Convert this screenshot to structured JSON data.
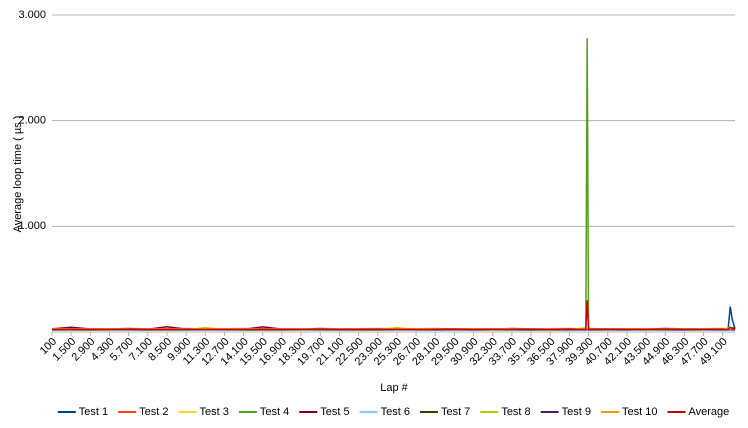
{
  "chart_data": {
    "type": "line",
    "y_label": "Average loop time ( µs )",
    "x_label": "Lap #",
    "x": [
      100,
      1500,
      2900,
      4300,
      5700,
      7100,
      8500,
      9900,
      11300,
      12700,
      14100,
      15500,
      16900,
      18300,
      19700,
      21100,
      22500,
      23900,
      25300,
      26700,
      28100,
      29500,
      30900,
      32300,
      33700,
      35100,
      36500,
      37900,
      39100,
      39200,
      39300,
      40700,
      42100,
      43500,
      44900,
      46300,
      47700,
      49100,
      49500,
      49650,
      49800,
      50000
    ],
    "xlim": [
      100,
      50000
    ],
    "xticks": [
      {
        "value": 100,
        "label": "100"
      },
      {
        "value": 1500,
        "label": "1.500"
      },
      {
        "value": 2900,
        "label": "2.900"
      },
      {
        "value": 4300,
        "label": "4.300"
      },
      {
        "value": 5700,
        "label": "5.700"
      },
      {
        "value": 7100,
        "label": "7.100"
      },
      {
        "value": 8500,
        "label": "8.500"
      },
      {
        "value": 9900,
        "label": "9.900"
      },
      {
        "value": 11300,
        "label": "11.300"
      },
      {
        "value": 12700,
        "label": "12.700"
      },
      {
        "value": 14100,
        "label": "14.100"
      },
      {
        "value": 15500,
        "label": "15.500"
      },
      {
        "value": 16900,
        "label": "16.900"
      },
      {
        "value": 18300,
        "label": "18.300"
      },
      {
        "value": 19700,
        "label": "19.700"
      },
      {
        "value": 21100,
        "label": "21.100"
      },
      {
        "value": 22500,
        "label": "22.500"
      },
      {
        "value": 23900,
        "label": "23.900"
      },
      {
        "value": 25300,
        "label": "25.300"
      },
      {
        "value": 26700,
        "label": "26.700"
      },
      {
        "value": 28100,
        "label": "28.100"
      },
      {
        "value": 29500,
        "label": "29.500"
      },
      {
        "value": 30900,
        "label": "30.900"
      },
      {
        "value": 32300,
        "label": "32.300"
      },
      {
        "value": 33700,
        "label": "33.700"
      },
      {
        "value": 35100,
        "label": "35.100"
      },
      {
        "value": 36500,
        "label": "36.500"
      },
      {
        "value": 37900,
        "label": "37.900"
      },
      {
        "value": 39300,
        "label": "39.300"
      },
      {
        "value": 40700,
        "label": "40.700"
      },
      {
        "value": 42100,
        "label": "42.100"
      },
      {
        "value": 43500,
        "label": "43.500"
      },
      {
        "value": 44900,
        "label": "44.900"
      },
      {
        "value": 46300,
        "label": "46.300"
      },
      {
        "value": 47700,
        "label": "47.700"
      },
      {
        "value": 49100,
        "label": "49.100"
      }
    ],
    "ylim": [
      0,
      3000
    ],
    "yticks": [
      {
        "value": 1000,
        "label": "1.000"
      },
      {
        "value": 2000,
        "label": "2.000"
      },
      {
        "value": 3000,
        "label": "3.000"
      }
    ],
    "grid": true,
    "legend": "bottom",
    "series": [
      {
        "name": "Test 1",
        "color": "#004586",
        "values": [
          25,
          22,
          24,
          23,
          26,
          22,
          25,
          24,
          23,
          22,
          25,
          24,
          23,
          26,
          22,
          24,
          25,
          23,
          22,
          24,
          26,
          23,
          22,
          25,
          24,
          23,
          22,
          24,
          23,
          25,
          24,
          22,
          23,
          25,
          24,
          22,
          26,
          25,
          30,
          240,
          120,
          30
        ]
      },
      {
        "name": "Test 2",
        "color": "#ff420e",
        "values": [
          20,
          21,
          19,
          20,
          22,
          20,
          19,
          21,
          20,
          20,
          21,
          19,
          20,
          22,
          20,
          21,
          19,
          20,
          21,
          20,
          19,
          22,
          20,
          21,
          20,
          19,
          20,
          21,
          20,
          20,
          19,
          21,
          20,
          22,
          20,
          19,
          21,
          20,
          20,
          22,
          21,
          20
        ]
      },
      {
        "name": "Test 3",
        "color": "#ffd320",
        "values": [
          28,
          26,
          27,
          25,
          28,
          26,
          27,
          29,
          26,
          25,
          27,
          28,
          26,
          27,
          25,
          29,
          27,
          26,
          28,
          27,
          25,
          26,
          28,
          27,
          26,
          29,
          27,
          28,
          26,
          27,
          28,
          26,
          27,
          25,
          28,
          27,
          26,
          27,
          28,
          26,
          27,
          28
        ]
      },
      {
        "name": "Test 4",
        "color": "#579d1c",
        "values": [
          22,
          21,
          23,
          22,
          21,
          20,
          22,
          23,
          21,
          22,
          20,
          21,
          22,
          23,
          21,
          22,
          20,
          21,
          23,
          22,
          21,
          22,
          20,
          21,
          22,
          23,
          21,
          22,
          21,
          2780,
          22,
          21,
          22,
          20,
          21,
          22,
          23,
          21,
          22,
          21,
          22,
          21
        ]
      },
      {
        "name": "Test 5",
        "color": "#7e0021",
        "values": [
          30,
          45,
          28,
          27,
          29,
          26,
          50,
          27,
          28,
          29,
          26,
          48,
          27,
          28,
          26,
          29,
          27,
          28,
          26,
          27,
          28,
          27,
          26,
          29,
          27,
          28,
          26,
          27,
          28,
          27,
          26,
          28,
          27,
          29,
          26,
          28,
          27,
          26,
          30,
          28,
          27,
          26
        ]
      },
      {
        "name": "Test 6",
        "color": "#83caff",
        "values": [
          18,
          19,
          18,
          20,
          19,
          18,
          19,
          18,
          20,
          19,
          18,
          19,
          18,
          20,
          19,
          18,
          19,
          18,
          20,
          19,
          18,
          19,
          18,
          20,
          19,
          18,
          19,
          18,
          20,
          19,
          18,
          19,
          18,
          20,
          19,
          18,
          19,
          18,
          20,
          19,
          18,
          19
        ]
      },
      {
        "name": "Test 7",
        "color": "#314004",
        "values": [
          32,
          30,
          31,
          29,
          33,
          30,
          31,
          32,
          30,
          31,
          32,
          30,
          31,
          29,
          33,
          30,
          31,
          32,
          30,
          31,
          32,
          30,
          31,
          29,
          33,
          30,
          31,
          32,
          30,
          31,
          32,
          30,
          31,
          29,
          33,
          30,
          31,
          32,
          30,
          31,
          38,
          35
        ]
      },
      {
        "name": "Test 8",
        "color": "#aecf00",
        "values": [
          24,
          23,
          25,
          24,
          23,
          26,
          24,
          23,
          40,
          24,
          24,
          23,
          25,
          24,
          23,
          26,
          24,
          23,
          40,
          24,
          24,
          23,
          25,
          24,
          23,
          26,
          24,
          23,
          40,
          24,
          24,
          23,
          25,
          24,
          23,
          26,
          24,
          23,
          40,
          24,
          24,
          23
        ]
      },
      {
        "name": "Test 9",
        "color": "#4b1f6f",
        "values": [
          21,
          22,
          21,
          23,
          22,
          21,
          22,
          21,
          23,
          22,
          21,
          22,
          21,
          23,
          22,
          21,
          22,
          21,
          23,
          22,
          21,
          22,
          21,
          23,
          22,
          21,
          22,
          21,
          23,
          22,
          21,
          22,
          21,
          23,
          22,
          21,
          22,
          21,
          23,
          22,
          22,
          21
        ]
      },
      {
        "name": "Test 10",
        "color": "#ff950e",
        "values": [
          30,
          29,
          31,
          30,
          29,
          30,
          31,
          29,
          30,
          31,
          30,
          29,
          31,
          30,
          29,
          30,
          31,
          29,
          30,
          31,
          30,
          29,
          31,
          30,
          29,
          30,
          31,
          29,
          30,
          31,
          30,
          29,
          31,
          30,
          29,
          30,
          31,
          29,
          30,
          31,
          30,
          29
        ]
      },
      {
        "name": "Average",
        "color": "#c5000b",
        "values": [
          24,
          24,
          25,
          24,
          25,
          24,
          25,
          24,
          25,
          24,
          24,
          24,
          25,
          24,
          25,
          24,
          25,
          24,
          25,
          24,
          24,
          25,
          24,
          25,
          24,
          25,
          24,
          25,
          24,
          300,
          25,
          24,
          25,
          24,
          25,
          24,
          25,
          24,
          25,
          45,
          35,
          26
        ]
      }
    ]
  }
}
